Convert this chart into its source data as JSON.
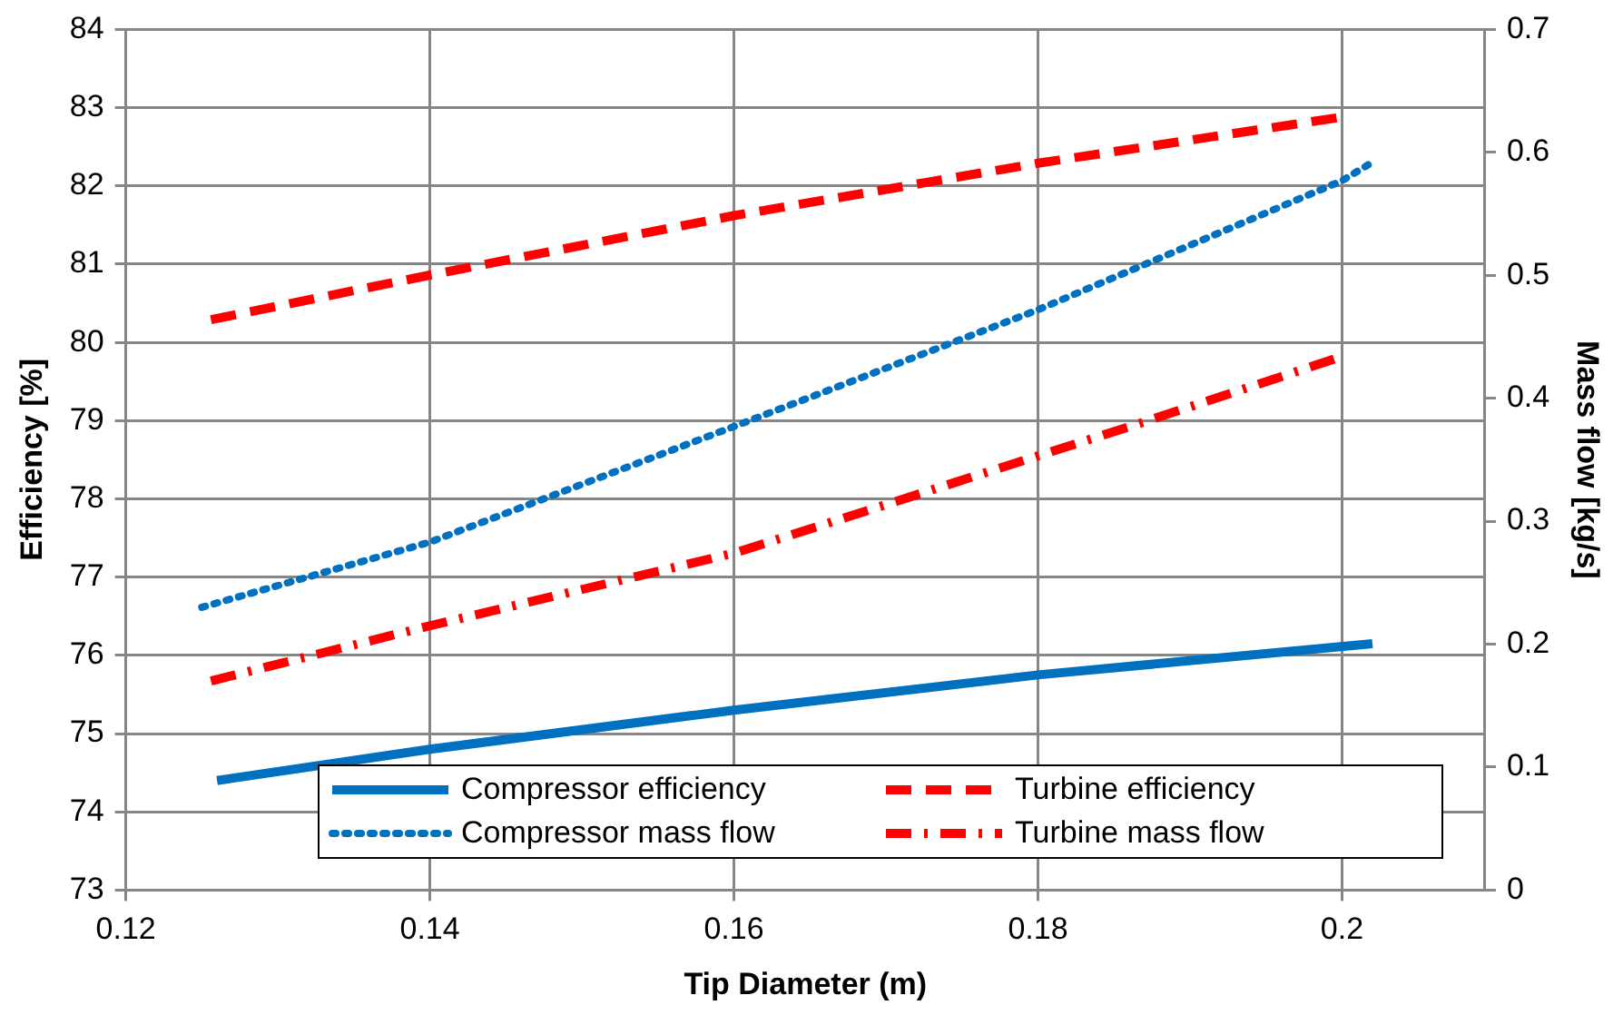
{
  "chart_data": {
    "type": "line",
    "xlabel": "Tip Diameter (m)",
    "ylabel": "Efficiency [%]",
    "y2label": "Mass flow [kg/s]",
    "xlim": [
      0.12,
      0.2094
    ],
    "xticks": [
      0.12,
      0.14,
      0.16,
      0.18,
      {
        "value": 0.2,
        "label": "0.2"
      }
    ],
    "ylim": [
      73,
      84
    ],
    "yticks": [
      73,
      74,
      75,
      76,
      77,
      78,
      79,
      80,
      81,
      82,
      83,
      84
    ],
    "y2lim": [
      0,
      0.7
    ],
    "y2ticks": [
      0,
      0.1,
      0.2,
      0.3,
      0.4,
      0.5,
      0.6,
      0.7
    ],
    "grid": true,
    "legend": "bottom",
    "marker": "none",
    "series": [
      {
        "name": "Compressor efficiency",
        "color": "#0070c0",
        "line_style": "solid",
        "x": [
          0.126,
          0.14,
          0.16,
          0.18,
          0.202
        ],
        "values": [
          74.4,
          74.8,
          75.3,
          75.75,
          76.15
        ]
      },
      {
        "name": "Turbine efficiency",
        "color": "#ff0000",
        "line_style": "dashed",
        "x": [
          0.1256,
          0.14,
          0.16,
          0.18,
          0.2
        ],
        "values": [
          80.29,
          80.86,
          81.62,
          82.29,
          82.88
        ]
      },
      {
        "name": "Compressor mass flow",
        "color": "#0070c0",
        "line_style": "dotted",
        "axis": "y2",
        "x": [
          0.125,
          0.14,
          0.16,
          0.18,
          0.2,
          0.202
        ],
        "values": [
          0.23,
          0.283,
          0.377,
          0.472,
          0.577,
          0.592
        ]
      },
      {
        "name": "Turbine mass flow",
        "color": "#ff0000",
        "line_style": "dashdot",
        "axis": "y2",
        "x": [
          0.1256,
          0.14,
          0.16,
          0.1868,
          0.2
        ],
        "values": [
          0.17,
          0.215,
          0.274,
          0.38,
          0.434
        ]
      }
    ]
  }
}
